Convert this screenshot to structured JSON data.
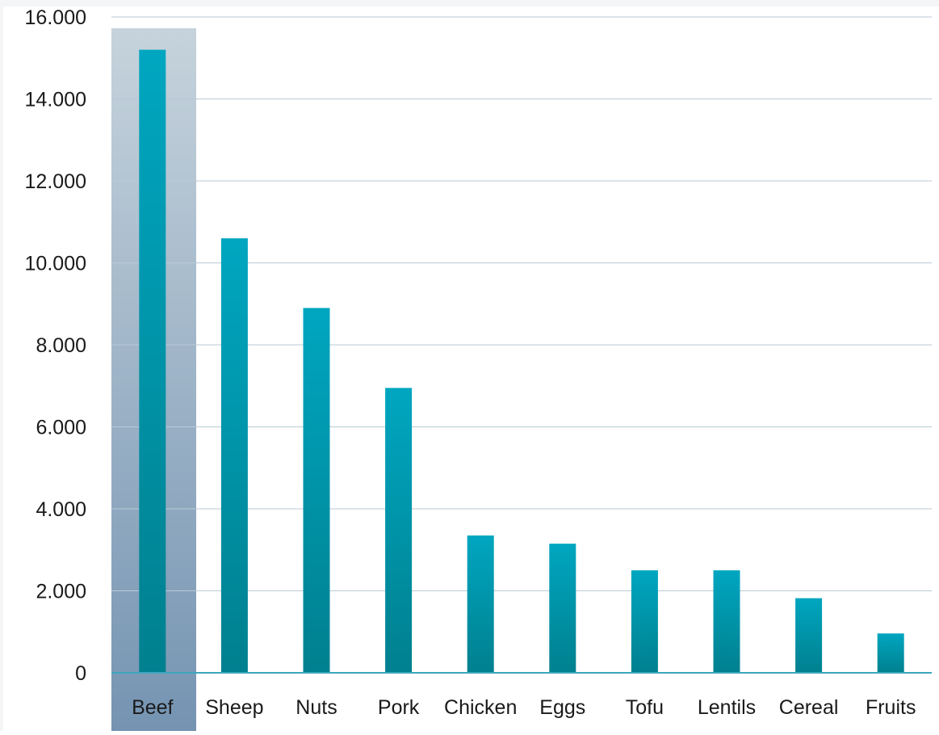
{
  "chart_data": {
    "type": "bar",
    "title": "",
    "xlabel": "",
    "ylabel": "",
    "categories": [
      "Beef",
      "Sheep",
      "Nuts",
      "Pork",
      "Chicken",
      "Eggs",
      "Tofu",
      "Lentils",
      "Cereal",
      "Fruits"
    ],
    "values": [
      15200,
      10600,
      8900,
      6950,
      3350,
      3150,
      2500,
      2500,
      1820,
      960
    ],
    "ylim": [
      0,
      16000
    ],
    "yticks": [
      0,
      2000,
      4000,
      6000,
      8000,
      10000,
      12000,
      14000,
      16000
    ],
    "ytick_labels": [
      "0",
      "2.000",
      "4.000",
      "6.000",
      "8.000",
      "10.000",
      "12.000",
      "14.000",
      "16.000"
    ],
    "grid": true,
    "highlighted_category": "Beef",
    "colors": {
      "bar_top": "#00a6c0",
      "bar_bottom": "#00808f",
      "highlight_top": "#c6d3dc",
      "highlight_bottom": "#7594b2",
      "grid": "#b9cad6",
      "axis": "#3ba7bd"
    }
  }
}
